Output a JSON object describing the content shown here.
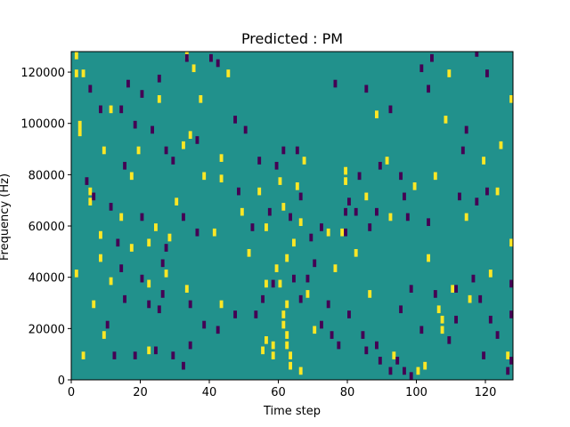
{
  "chart_data": {
    "type": "heatmap",
    "title": "Predicted : PM",
    "xlabel": "Time step",
    "ylabel": "Frequency (Hz)",
    "xlim": [
      0,
      128
    ],
    "ylim": [
      0,
      128000
    ],
    "x_ticks": [
      "0",
      "20",
      "40",
      "60",
      "80",
      "100",
      "120"
    ],
    "y_ticks": [
      "0",
      "20000",
      "40000",
      "60000",
      "80000",
      "100000",
      "120000"
    ],
    "value_range": [
      -1,
      1
    ],
    "colors": {
      "background": "#21918c",
      "high": "#fde725",
      "low": "#440154"
    },
    "cells": [
      {
        "x": 1,
        "f": 125000,
        "v": 1
      },
      {
        "x": 3,
        "f": 118000,
        "v": 1
      },
      {
        "x": 3,
        "f": 8000,
        "v": 1
      },
      {
        "x": 2,
        "f": 98000,
        "v": 1
      },
      {
        "x": 2,
        "f": 95000,
        "v": 1
      },
      {
        "x": 1,
        "f": 40000,
        "v": 1
      },
      {
        "x": 5,
        "f": 72000,
        "v": 1
      },
      {
        "x": 5,
        "f": 68000,
        "v": 1
      },
      {
        "x": 6,
        "f": 28000,
        "v": 1
      },
      {
        "x": 9,
        "f": 88000,
        "v": 1
      },
      {
        "x": 8,
        "f": 55000,
        "v": 1
      },
      {
        "x": 8,
        "f": 46000,
        "v": 1
      },
      {
        "x": 9,
        "f": 16000,
        "v": 1
      },
      {
        "x": 11,
        "f": 37000,
        "v": 1
      },
      {
        "x": 11,
        "f": 104000,
        "v": 1
      },
      {
        "x": 14,
        "f": 62000,
        "v": 1
      },
      {
        "x": 17,
        "f": 78000,
        "v": 1
      },
      {
        "x": 17,
        "f": 50000,
        "v": 1
      },
      {
        "x": 19,
        "f": 88000,
        "v": 1
      },
      {
        "x": 22,
        "f": 52000,
        "v": 1
      },
      {
        "x": 22,
        "f": 36000,
        "v": 1
      },
      {
        "x": 22,
        "f": 10000,
        "v": 1
      },
      {
        "x": 25,
        "f": 108000,
        "v": 1
      },
      {
        "x": 24,
        "f": 58000,
        "v": 1
      },
      {
        "x": 27,
        "f": 40000,
        "v": 1
      },
      {
        "x": 28,
        "f": 54000,
        "v": 1
      },
      {
        "x": 30,
        "f": 68000,
        "v": 1
      },
      {
        "x": 33,
        "f": 125000,
        "v": 1
      },
      {
        "x": 35,
        "f": 120000,
        "v": 1
      },
      {
        "x": 32,
        "f": 90000,
        "v": 1
      },
      {
        "x": 34,
        "f": 94000,
        "v": 1
      },
      {
        "x": 33,
        "f": 34000,
        "v": 1
      },
      {
        "x": 37,
        "f": 108000,
        "v": 1
      },
      {
        "x": 38,
        "f": 78000,
        "v": 1
      },
      {
        "x": 41,
        "f": 56000,
        "v": 1
      },
      {
        "x": 43,
        "f": 28000,
        "v": 1
      },
      {
        "x": 43,
        "f": 85000,
        "v": 1
      },
      {
        "x": 43,
        "f": 77000,
        "v": 1
      },
      {
        "x": 45,
        "f": 118000,
        "v": 1
      },
      {
        "x": 49,
        "f": 64000,
        "v": 1
      },
      {
        "x": 51,
        "f": 48000,
        "v": 1
      },
      {
        "x": 54,
        "f": 72000,
        "v": 1
      },
      {
        "x": 56,
        "f": 58000,
        "v": 1
      },
      {
        "x": 56,
        "f": 36000,
        "v": 1
      },
      {
        "x": 55,
        "f": 10000,
        "v": 1
      },
      {
        "x": 56,
        "f": 14000,
        "v": 1
      },
      {
        "x": 58,
        "f": 8000,
        "v": 1
      },
      {
        "x": 58,
        "f": 12000,
        "v": 1
      },
      {
        "x": 59,
        "f": 42000,
        "v": 1
      },
      {
        "x": 60,
        "f": 76000,
        "v": 1
      },
      {
        "x": 61,
        "f": 24000,
        "v": 1
      },
      {
        "x": 61,
        "f": 20000,
        "v": 1
      },
      {
        "x": 62,
        "f": 16000,
        "v": 1
      },
      {
        "x": 62,
        "f": 12000,
        "v": 1
      },
      {
        "x": 63,
        "f": 8000,
        "v": 1
      },
      {
        "x": 63,
        "f": 4000,
        "v": 1
      },
      {
        "x": 62,
        "f": 28000,
        "v": 1
      },
      {
        "x": 60,
        "f": 36000,
        "v": 1
      },
      {
        "x": 61,
        "f": 66000,
        "v": 1
      },
      {
        "x": 62,
        "f": 46000,
        "v": 1
      },
      {
        "x": 64,
        "f": 52000,
        "v": 1
      },
      {
        "x": 65,
        "f": 74000,
        "v": 1
      },
      {
        "x": 66,
        "f": 60000,
        "v": 1
      },
      {
        "x": 67,
        "f": 84000,
        "v": 1
      },
      {
        "x": 68,
        "f": 32000,
        "v": 1
      },
      {
        "x": 66,
        "f": 2000,
        "v": 1
      },
      {
        "x": 70,
        "f": 18000,
        "v": 1
      },
      {
        "x": 74,
        "f": 56000,
        "v": 1
      },
      {
        "x": 76,
        "f": 42000,
        "v": 1
      },
      {
        "x": 78,
        "f": 56000,
        "v": 1
      },
      {
        "x": 79,
        "f": 80000,
        "v": 1
      },
      {
        "x": 79,
        "f": 76000,
        "v": 1
      },
      {
        "x": 82,
        "f": 48000,
        "v": 1
      },
      {
        "x": 85,
        "f": 70000,
        "v": 1
      },
      {
        "x": 86,
        "f": 32000,
        "v": 1
      },
      {
        "x": 88,
        "f": 102000,
        "v": 1
      },
      {
        "x": 91,
        "f": 84000,
        "v": 1
      },
      {
        "x": 92,
        "f": 62000,
        "v": 1
      },
      {
        "x": 93,
        "f": 8000,
        "v": 1
      },
      {
        "x": 99,
        "f": 74000,
        "v": 1
      },
      {
        "x": 100,
        "f": 2000,
        "v": 1
      },
      {
        "x": 102,
        "f": 4000,
        "v": 1
      },
      {
        "x": 103,
        "f": 46000,
        "v": 1
      },
      {
        "x": 105,
        "f": 78000,
        "v": 1
      },
      {
        "x": 106,
        "f": 26000,
        "v": 1
      },
      {
        "x": 107,
        "f": 22000,
        "v": 1
      },
      {
        "x": 107,
        "f": 18000,
        "v": 1
      },
      {
        "x": 109,
        "f": 118000,
        "v": 1
      },
      {
        "x": 108,
        "f": 100000,
        "v": 1
      },
      {
        "x": 110,
        "f": 34000,
        "v": 1
      },
      {
        "x": 115,
        "f": 30000,
        "v": 1
      },
      {
        "x": 114,
        "f": 62000,
        "v": 1
      },
      {
        "x": 119,
        "f": 84000,
        "v": 1
      },
      {
        "x": 121,
        "f": 40000,
        "v": 1
      },
      {
        "x": 123,
        "f": 72000,
        "v": 1
      },
      {
        "x": 124,
        "f": 90000,
        "v": 1
      },
      {
        "x": 127,
        "f": 108000,
        "v": 1
      },
      {
        "x": 127,
        "f": 52000,
        "v": 1
      },
      {
        "x": 126,
        "f": 8000,
        "v": 1
      },
      {
        "x": 50,
        "f": 96000,
        "v": -1
      },
      {
        "x": 1,
        "f": 118000,
        "v": 1
      },
      {
        "x": 25,
        "f": 116000,
        "v": -1
      },
      {
        "x": 33,
        "f": 124000,
        "v": -1
      },
      {
        "x": 40,
        "f": 124000,
        "v": -1
      },
      {
        "x": 42,
        "f": 122000,
        "v": -1
      },
      {
        "x": 20,
        "f": 110000,
        "v": -1
      },
      {
        "x": 14,
        "f": 104000,
        "v": -1
      },
      {
        "x": 18,
        "f": 98000,
        "v": -1
      },
      {
        "x": 23,
        "f": 96000,
        "v": -1
      },
      {
        "x": 27,
        "f": 88000,
        "v": -1
      },
      {
        "x": 29,
        "f": 84000,
        "v": -1
      },
      {
        "x": 36,
        "f": 92000,
        "v": -1
      },
      {
        "x": 47,
        "f": 100000,
        "v": -1
      },
      {
        "x": 54,
        "f": 84000,
        "v": -1
      },
      {
        "x": 61,
        "f": 88000,
        "v": -1
      },
      {
        "x": 65,
        "f": 88000,
        "v": -1
      },
      {
        "x": 59,
        "f": 82000,
        "v": -1
      },
      {
        "x": 76,
        "f": 114000,
        "v": -1
      },
      {
        "x": 85,
        "f": 112000,
        "v": -1
      },
      {
        "x": 83,
        "f": 78000,
        "v": -1
      },
      {
        "x": 79,
        "f": 64000,
        "v": -1
      },
      {
        "x": 80,
        "f": 68000,
        "v": -1
      },
      {
        "x": 89,
        "f": 82000,
        "v": -1
      },
      {
        "x": 92,
        "f": 104000,
        "v": -1
      },
      {
        "x": 95,
        "f": 78000,
        "v": -1
      },
      {
        "x": 103,
        "f": 112000,
        "v": -1
      },
      {
        "x": 104,
        "f": 124000,
        "v": -1
      },
      {
        "x": 101,
        "f": 120000,
        "v": -1
      },
      {
        "x": 117,
        "f": 126000,
        "v": -1
      },
      {
        "x": 120,
        "f": 118000,
        "v": -1
      },
      {
        "x": 113,
        "f": 88000,
        "v": -1
      },
      {
        "x": 114,
        "f": 96000,
        "v": -1
      },
      {
        "x": 120,
        "f": 72000,
        "v": -1
      },
      {
        "x": 117,
        "f": 68000,
        "v": -1
      },
      {
        "x": 112,
        "f": 70000,
        "v": -1
      },
      {
        "x": 97,
        "f": 62000,
        "v": -1
      },
      {
        "x": 103,
        "f": 60000,
        "v": -1
      },
      {
        "x": 96,
        "f": 70000,
        "v": -1
      },
      {
        "x": 88,
        "f": 64000,
        "v": -1
      },
      {
        "x": 86,
        "f": 58000,
        "v": -1
      },
      {
        "x": 82,
        "f": 64000,
        "v": -1
      },
      {
        "x": 79,
        "f": 56000,
        "v": -1
      },
      {
        "x": 72,
        "f": 58000,
        "v": -1
      },
      {
        "x": 69,
        "f": 54000,
        "v": -1
      },
      {
        "x": 66,
        "f": 70000,
        "v": -1
      },
      {
        "x": 63,
        "f": 62000,
        "v": -1
      },
      {
        "x": 57,
        "f": 64000,
        "v": -1
      },
      {
        "x": 52,
        "f": 58000,
        "v": -1
      },
      {
        "x": 48,
        "f": 72000,
        "v": -1
      },
      {
        "x": 36,
        "f": 56000,
        "v": -1
      },
      {
        "x": 32,
        "f": 62000,
        "v": -1
      },
      {
        "x": 27,
        "f": 50000,
        "v": -1
      },
      {
        "x": 26,
        "f": 44000,
        "v": -1
      },
      {
        "x": 20,
        "f": 62000,
        "v": -1
      },
      {
        "x": 13,
        "f": 52000,
        "v": -1
      },
      {
        "x": 14,
        "f": 42000,
        "v": -1
      },
      {
        "x": 20,
        "f": 38000,
        "v": -1
      },
      {
        "x": 15,
        "f": 30000,
        "v": -1
      },
      {
        "x": 22,
        "f": 28000,
        "v": -1
      },
      {
        "x": 25,
        "f": 26000,
        "v": -1
      },
      {
        "x": 26,
        "f": 32000,
        "v": -1
      },
      {
        "x": 34,
        "f": 28000,
        "v": -1
      },
      {
        "x": 38,
        "f": 20000,
        "v": -1
      },
      {
        "x": 42,
        "f": 18000,
        "v": -1
      },
      {
        "x": 47,
        "f": 24000,
        "v": -1
      },
      {
        "x": 53,
        "f": 24000,
        "v": -1
      },
      {
        "x": 55,
        "f": 30000,
        "v": -1
      },
      {
        "x": 58,
        "f": 36000,
        "v": -1
      },
      {
        "x": 64,
        "f": 38000,
        "v": -1
      },
      {
        "x": 66,
        "f": 30000,
        "v": -1
      },
      {
        "x": 68,
        "f": 38000,
        "v": -1
      },
      {
        "x": 70,
        "f": 44000,
        "v": -1
      },
      {
        "x": 74,
        "f": 28000,
        "v": -1
      },
      {
        "x": 72,
        "f": 20000,
        "v": -1
      },
      {
        "x": 75,
        "f": 16000,
        "v": -1
      },
      {
        "x": 77,
        "f": 12000,
        "v": -1
      },
      {
        "x": 80,
        "f": 24000,
        "v": -1
      },
      {
        "x": 84,
        "f": 16000,
        "v": -1
      },
      {
        "x": 85,
        "f": 10000,
        "v": -1
      },
      {
        "x": 88,
        "f": 12000,
        "v": -1
      },
      {
        "x": 89,
        "f": 6000,
        "v": -1
      },
      {
        "x": 92,
        "f": 2000,
        "v": -1
      },
      {
        "x": 94,
        "f": 6000,
        "v": -1
      },
      {
        "x": 96,
        "f": 2000,
        "v": -1
      },
      {
        "x": 98,
        "f": 0,
        "v": -1
      },
      {
        "x": 95,
        "f": 26000,
        "v": -1
      },
      {
        "x": 98,
        "f": 34000,
        "v": -1
      },
      {
        "x": 101,
        "f": 18000,
        "v": -1
      },
      {
        "x": 105,
        "f": 32000,
        "v": -1
      },
      {
        "x": 109,
        "f": 14000,
        "v": -1
      },
      {
        "x": 111,
        "f": 22000,
        "v": -1
      },
      {
        "x": 111,
        "f": 34000,
        "v": -1
      },
      {
        "x": 116,
        "f": 38000,
        "v": -1
      },
      {
        "x": 118,
        "f": 30000,
        "v": -1
      },
      {
        "x": 121,
        "f": 22000,
        "v": -1
      },
      {
        "x": 123,
        "f": 16000,
        "v": -1
      },
      {
        "x": 126,
        "f": 2000,
        "v": -1
      },
      {
        "x": 128,
        "f": 6000,
        "v": -1
      },
      {
        "x": 127,
        "f": 24000,
        "v": -1
      },
      {
        "x": 128,
        "f": 36000,
        "v": -1
      },
      {
        "x": 119,
        "f": 8000,
        "v": -1
      },
      {
        "x": 12,
        "f": 8000,
        "v": -1
      },
      {
        "x": 10,
        "f": 20000,
        "v": -1
      },
      {
        "x": 18,
        "f": 8000,
        "v": -1
      },
      {
        "x": 24,
        "f": 10000,
        "v": -1
      },
      {
        "x": 29,
        "f": 8000,
        "v": -1
      },
      {
        "x": 32,
        "f": 4000,
        "v": -1
      },
      {
        "x": 34,
        "f": 12000,
        "v": -1
      },
      {
        "x": 6,
        "f": 70000,
        "v": -1
      },
      {
        "x": 11,
        "f": 66000,
        "v": -1
      },
      {
        "x": 4,
        "f": 76000,
        "v": -1
      },
      {
        "x": 15,
        "f": 82000,
        "v": -1
      },
      {
        "x": 8,
        "f": 104000,
        "v": -1
      },
      {
        "x": 5,
        "f": 112000,
        "v": -1
      },
      {
        "x": 16,
        "f": 114000,
        "v": -1
      }
    ]
  }
}
